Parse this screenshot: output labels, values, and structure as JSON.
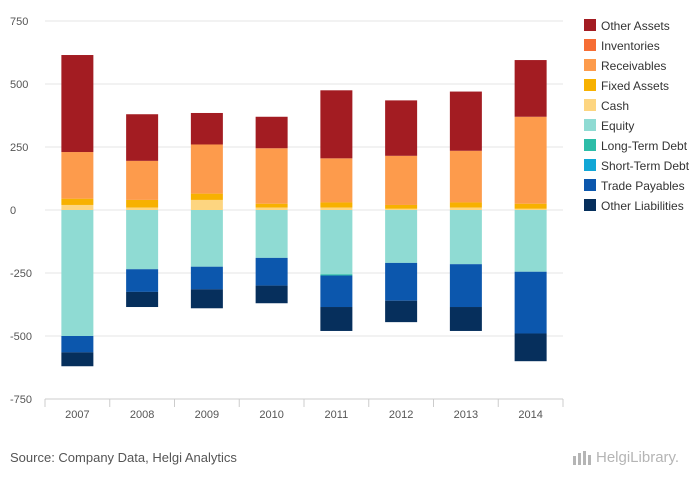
{
  "chart_data": {
    "type": "bar",
    "stacked": true,
    "categories": [
      "2007",
      "2008",
      "2009",
      "2010",
      "2011",
      "2012",
      "2013",
      "2014"
    ],
    "ylim": [
      -750,
      750
    ],
    "yticks": [
      -750,
      -500,
      -250,
      0,
      250,
      500,
      750
    ],
    "grid": true,
    "legend_position": "right",
    "series": [
      {
        "name": "Other Assets",
        "side": "asset",
        "color": "#a31c22",
        "values": [
          385,
          185,
          125,
          125,
          270,
          220,
          235,
          225
        ]
      },
      {
        "name": "Inventories",
        "side": "asset",
        "color": "#f66d34",
        "values": [
          0,
          0,
          0,
          0,
          0,
          0,
          0,
          0
        ]
      },
      {
        "name": "Receivables",
        "side": "asset",
        "color": "#fd9b4c",
        "values": [
          185,
          155,
          195,
          220,
          175,
          195,
          205,
          345
        ]
      },
      {
        "name": "Fixed Assets",
        "side": "asset",
        "color": "#f7b100",
        "values": [
          25,
          30,
          25,
          15,
          20,
          15,
          20,
          20
        ]
      },
      {
        "name": "Cash",
        "side": "asset",
        "color": "#fdd580",
        "values": [
          20,
          10,
          40,
          10,
          10,
          5,
          10,
          5
        ]
      },
      {
        "name": "Equity",
        "side": "liability",
        "color": "#8fdbd3",
        "values": [
          -500,
          -235,
          -225,
          -190,
          -255,
          -210,
          -215,
          -245
        ]
      },
      {
        "name": "Long-Term Debt",
        "side": "liability",
        "color": "#2dbda8",
        "values": [
          0,
          0,
          0,
          0,
          -5,
          0,
          0,
          0
        ]
      },
      {
        "name": "Short-Term Debt",
        "side": "liability",
        "color": "#11a7d6",
        "values": [
          0,
          0,
          0,
          0,
          0,
          0,
          0,
          0
        ]
      },
      {
        "name": "Trade Payables",
        "side": "liability",
        "color": "#0c57ad",
        "values": [
          -65,
          -90,
          -90,
          -110,
          -125,
          -150,
          -170,
          -245
        ]
      },
      {
        "name": "Other Liabilities",
        "side": "liability",
        "color": "#062f5c",
        "values": [
          -55,
          -60,
          -75,
          -70,
          -95,
          -85,
          -95,
          -110
        ]
      }
    ],
    "legend_order": [
      "Other Assets",
      "Inventories",
      "Receivables",
      "Fixed Assets",
      "Cash",
      "Equity",
      "Long-Term Debt",
      "Short-Term Debt",
      "Trade Payables",
      "Other Liabilities"
    ],
    "asset_stack_order": [
      "Cash",
      "Fixed Assets",
      "Receivables",
      "Inventories",
      "Other Assets"
    ],
    "liability_stack_order": [
      "Equity",
      "Long-Term Debt",
      "Short-Term Debt",
      "Trade Payables",
      "Other Liabilities"
    ]
  },
  "footer": {
    "source": "Source: Company Data, Helgi Analytics",
    "brand": "HelgiLibrary."
  },
  "colors": {
    "grid": "#e5e5e5",
    "axis": "#cccccc",
    "brand": "#b5b5b5"
  }
}
